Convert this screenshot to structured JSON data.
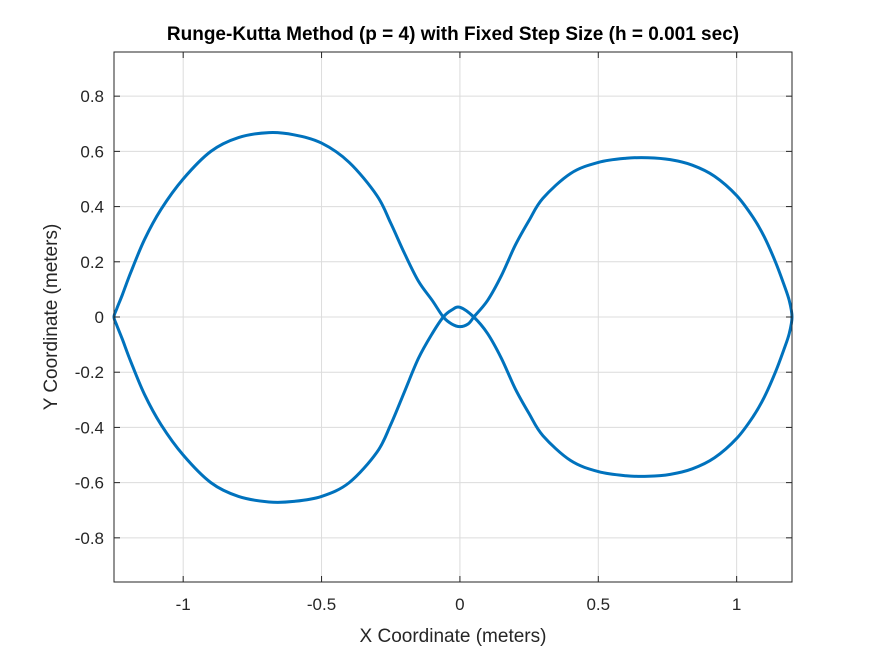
{
  "chart_data": {
    "type": "line",
    "title": "Runge-Kutta Method (p = 4) with Fixed Step Size (h = 0.001 sec)",
    "xlabel": "X Coordinate (meters)",
    "ylabel": "Y Coordinate (meters)",
    "xlim": [
      -1.25,
      1.2
    ],
    "ylim": [
      -0.96,
      0.96
    ],
    "xticks": [
      -1,
      -0.5,
      0,
      0.5,
      1
    ],
    "xtick_labels": [
      "-1",
      "-0.5",
      "0",
      "0.5",
      "1"
    ],
    "yticks": [
      -0.8,
      -0.6,
      -0.4,
      -0.2,
      0,
      0.2,
      0.4,
      0.6,
      0.8
    ],
    "ytick_labels": [
      "-0.8",
      "-0.6",
      "-0.4",
      "-0.2",
      "0",
      "0.2",
      "0.4",
      "0.6",
      "0.8"
    ],
    "grid": true,
    "series": [
      {
        "color": "#0072bd",
        "x": [
          0.05,
          0.1,
          0.15,
          0.2,
          0.25,
          0.3,
          0.4,
          0.5,
          0.6,
          0.68,
          0.76,
          0.84,
          0.92,
          1.0,
          1.06,
          1.1,
          1.14,
          1.17,
          1.19,
          1.2,
          1.19,
          1.17,
          1.14,
          1.1,
          1.06,
          1.0,
          0.92,
          0.84,
          0.76,
          0.68,
          0.6,
          0.5,
          0.4,
          0.3,
          0.25,
          0.2,
          0.15,
          0.1,
          0.05,
          0.0,
          -0.03,
          -0.06,
          -0.1,
          -0.15,
          -0.2,
          -0.25,
          -0.3,
          -0.4,
          -0.5,
          -0.6,
          -0.69,
          -0.8,
          -0.9,
          -1.0,
          -1.08,
          -1.14,
          -1.19,
          -1.22,
          -1.24,
          -1.25,
          -1.24,
          -1.22,
          -1.19,
          -1.14,
          -1.08,
          -1.0,
          -0.9,
          -0.8,
          -0.69,
          -0.6,
          -0.5,
          -0.4,
          -0.3,
          -0.25,
          -0.2,
          -0.15,
          -0.1,
          -0.06,
          -0.03,
          0.0,
          0.03,
          0.05
        ],
        "y": [
          0.0,
          0.06,
          0.15,
          0.26,
          0.35,
          0.43,
          0.52,
          0.56,
          0.575,
          0.577,
          0.57,
          0.55,
          0.51,
          0.44,
          0.36,
          0.29,
          0.2,
          0.12,
          0.06,
          0.0,
          -0.06,
          -0.12,
          -0.2,
          -0.29,
          -0.36,
          -0.44,
          -0.51,
          -0.55,
          -0.57,
          -0.577,
          -0.575,
          -0.56,
          -0.52,
          -0.43,
          -0.35,
          -0.26,
          -0.15,
          -0.06,
          0.0,
          0.035,
          0.025,
          0.0,
          -0.06,
          -0.15,
          -0.27,
          -0.39,
          -0.49,
          -0.6,
          -0.65,
          -0.668,
          -0.67,
          -0.65,
          -0.6,
          -0.5,
          -0.39,
          -0.28,
          -0.16,
          -0.08,
          -0.03,
          0.0,
          0.03,
          0.08,
          0.16,
          0.28,
          0.39,
          0.5,
          0.6,
          0.65,
          0.668,
          0.66,
          0.63,
          0.56,
          0.44,
          0.34,
          0.23,
          0.13,
          0.06,
          0.0,
          -0.025,
          -0.035,
          -0.025,
          0.0
        ]
      }
    ]
  }
}
